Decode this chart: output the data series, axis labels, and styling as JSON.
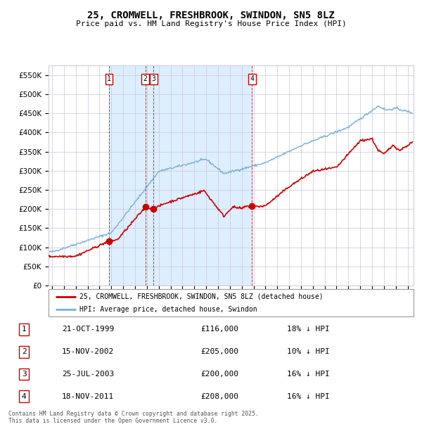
{
  "title": "25, CROMWELL, FRESHBROOK, SWINDON, SN5 8LZ",
  "subtitle": "Price paid vs. HM Land Registry's House Price Index (HPI)",
  "legend_property": "25, CROMWELL, FRESHBROOK, SWINDON, SN5 8LZ (detached house)",
  "legend_hpi": "HPI: Average price, detached house, Swindon",
  "footer": "Contains HM Land Registry data © Crown copyright and database right 2025.\nThis data is licensed under the Open Government Licence v3.0.",
  "transactions": [
    {
      "num": 1,
      "date": "21-OCT-1999",
      "price": 116000,
      "hpi_pct": "18% ↓ HPI",
      "x_year": 1999.8
    },
    {
      "num": 2,
      "date": "15-NOV-2002",
      "price": 205000,
      "hpi_pct": "10% ↓ HPI",
      "x_year": 2002.87
    },
    {
      "num": 3,
      "date": "25-JUL-2003",
      "price": 200000,
      "hpi_pct": "16% ↓ HPI",
      "x_year": 2003.56
    },
    {
      "num": 4,
      "date": "18-NOV-2011",
      "price": 208000,
      "hpi_pct": "16% ↓ HPI",
      "x_year": 2011.87
    }
  ],
  "property_color": "#cc0000",
  "hpi_color": "#7bafd4",
  "background_color": "#ddeeff",
  "ylim": [
    0,
    575000
  ],
  "yticks": [
    0,
    50000,
    100000,
    150000,
    200000,
    250000,
    300000,
    350000,
    400000,
    450000,
    500000,
    550000
  ],
  "xlim_start": 1994.7,
  "xlim_end": 2025.5
}
